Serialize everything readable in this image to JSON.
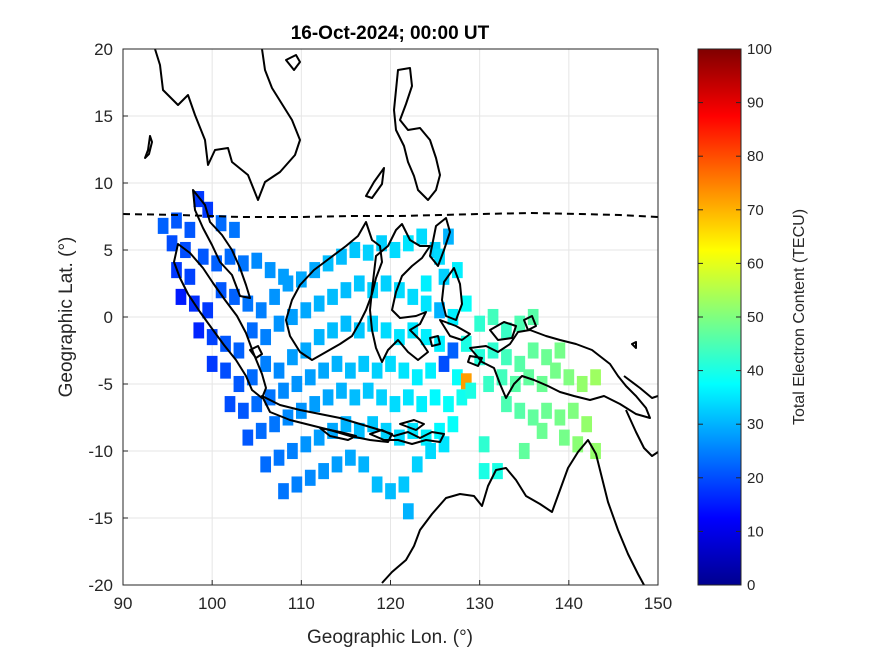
{
  "chart_data": {
    "type": "heatmap",
    "title": "16-Oct-2024; 00:00 UT",
    "xlabel": "Geographic Lon. (°)",
    "ylabel": "Geographic Lat. (°)",
    "xlim": [
      90,
      150
    ],
    "ylim": [
      -20,
      20
    ],
    "xticks": [
      "90",
      "100",
      "110",
      "120",
      "130",
      "140",
      "150"
    ],
    "yticks": [
      "20",
      "15",
      "10",
      "5",
      "0",
      "-5",
      "-10",
      "-15",
      "-20"
    ],
    "grid": true,
    "colorbar": {
      "label": "Total Electron Content (TECU)",
      "range": [
        0,
        100
      ],
      "ticks": [
        "0",
        "10",
        "20",
        "30",
        "40",
        "50",
        "60",
        "70",
        "80",
        "90",
        "100"
      ],
      "colormap": "jet"
    },
    "cell_size_deg": 1.2,
    "cells": [
      [
        94.5,
        6.8,
        22
      ],
      [
        96,
        7.2,
        21
      ],
      [
        97.5,
        6.5,
        21
      ],
      [
        95.5,
        5.5,
        20
      ],
      [
        97,
        5,
        20
      ],
      [
        98.5,
        8.8,
        18
      ],
      [
        99.5,
        8,
        18
      ],
      [
        101,
        7,
        23
      ],
      [
        102.5,
        6.5,
        24
      ],
      [
        96,
        3.5,
        18
      ],
      [
        97.5,
        3,
        19
      ],
      [
        99,
        4.5,
        21
      ],
      [
        100.5,
        4,
        22
      ],
      [
        102,
        4.5,
        23
      ],
      [
        103.5,
        4,
        24
      ],
      [
        105,
        4.2,
        26
      ],
      [
        106.5,
        3.5,
        27
      ],
      [
        108,
        3,
        28
      ],
      [
        96.5,
        1.5,
        15
      ],
      [
        98,
        1,
        17
      ],
      [
        99.5,
        0.5,
        18
      ],
      [
        101,
        2,
        21
      ],
      [
        102.5,
        1.5,
        22
      ],
      [
        104,
        1,
        24
      ],
      [
        105.5,
        0.5,
        25
      ],
      [
        107,
        1.5,
        27
      ],
      [
        108.5,
        2.5,
        28
      ],
      [
        110,
        2.8,
        29
      ],
      [
        111.5,
        3.5,
        29
      ],
      [
        113,
        4,
        31
      ],
      [
        114.5,
        4.5,
        31
      ],
      [
        116,
        5,
        32
      ],
      [
        117.5,
        4.8,
        33
      ],
      [
        119,
        5.5,
        33
      ],
      [
        120.5,
        5,
        34
      ],
      [
        122,
        5.5,
        35
      ],
      [
        123.5,
        6,
        34
      ],
      [
        125,
        5,
        33
      ],
      [
        126.5,
        6,
        30
      ],
      [
        98.5,
        -1,
        16
      ],
      [
        100,
        -1.5,
        19
      ],
      [
        101.5,
        -2,
        21
      ],
      [
        103,
        -2.5,
        22
      ],
      [
        104.5,
        -1,
        23
      ],
      [
        106,
        -1.5,
        25
      ],
      [
        107.5,
        -0.5,
        27
      ],
      [
        109,
        0,
        28
      ],
      [
        110.5,
        0.5,
        29
      ],
      [
        112,
        1,
        30
      ],
      [
        113.5,
        1.5,
        31
      ],
      [
        115,
        2,
        31
      ],
      [
        116.5,
        2.5,
        32
      ],
      [
        118,
        2,
        33
      ],
      [
        119.5,
        2.5,
        33
      ],
      [
        121,
        2,
        34
      ],
      [
        122.5,
        1.5,
        34
      ],
      [
        124,
        1,
        35
      ],
      [
        125.5,
        0.5,
        30
      ],
      [
        127,
        0,
        36
      ],
      [
        128.5,
        1,
        38
      ],
      [
        100,
        -3.5,
        18
      ],
      [
        101.5,
        -4,
        20
      ],
      [
        103,
        -5,
        21
      ],
      [
        104.5,
        -4.5,
        23
      ],
      [
        106,
        -3.5,
        25
      ],
      [
        107.5,
        -4,
        26
      ],
      [
        109,
        -3,
        28
      ],
      [
        110.5,
        -2.5,
        29
      ],
      [
        112,
        -1.5,
        30
      ],
      [
        113.5,
        -1,
        31
      ],
      [
        115,
        -0.5,
        31
      ],
      [
        116.5,
        -1,
        32
      ],
      [
        118,
        -0.5,
        33
      ],
      [
        119.5,
        -1,
        34
      ],
      [
        121,
        -1.5,
        35
      ],
      [
        122.5,
        -1,
        35
      ],
      [
        124,
        -1.5,
        36
      ],
      [
        125.5,
        -2,
        36
      ],
      [
        127,
        -2.5,
        22
      ],
      [
        128.5,
        -2,
        40
      ],
      [
        130,
        -0.5,
        42
      ],
      [
        131.5,
        0,
        44
      ],
      [
        133,
        -1,
        43
      ],
      [
        134.5,
        -0.5,
        45
      ],
      [
        136,
        0,
        46
      ],
      [
        102,
        -6.5,
        20
      ],
      [
        103.5,
        -7,
        21
      ],
      [
        105,
        -6.5,
        23
      ],
      [
        106.5,
        -6,
        24
      ],
      [
        108,
        -5.5,
        26
      ],
      [
        109.5,
        -5,
        27
      ],
      [
        111,
        -4.5,
        28
      ],
      [
        112.5,
        -4,
        29
      ],
      [
        114,
        -3.5,
        30
      ],
      [
        115.5,
        -4,
        31
      ],
      [
        117,
        -3.5,
        32
      ],
      [
        118.5,
        -4,
        33
      ],
      [
        120,
        -3.5,
        34
      ],
      [
        121.5,
        -4,
        35
      ],
      [
        123,
        -4.5,
        36
      ],
      [
        124.5,
        -4,
        36
      ],
      [
        126,
        -3.5,
        20
      ],
      [
        127.5,
        -4.5,
        38
      ],
      [
        128.5,
        -4.8,
        72
      ],
      [
        130,
        -3,
        41
      ],
      [
        131.5,
        -2.5,
        42
      ],
      [
        133,
        -3,
        44
      ],
      [
        134.5,
        -3.5,
        46
      ],
      [
        136,
        -2.5,
        47
      ],
      [
        137.5,
        -3,
        48
      ],
      [
        139,
        -2.5,
        49
      ],
      [
        104,
        -9,
        21
      ],
      [
        105.5,
        -8.5,
        23
      ],
      [
        107,
        -8,
        24
      ],
      [
        108.5,
        -7.5,
        26
      ],
      [
        110,
        -7,
        27
      ],
      [
        111.5,
        -6.5,
        28
      ],
      [
        113,
        -6,
        29
      ],
      [
        114.5,
        -5.5,
        30
      ],
      [
        116,
        -6,
        31
      ],
      [
        117.5,
        -5.5,
        32
      ],
      [
        119,
        -6,
        33
      ],
      [
        120.5,
        -6.5,
        34
      ],
      [
        122,
        -6,
        35
      ],
      [
        123.5,
        -6.5,
        36
      ],
      [
        125,
        -6,
        37
      ],
      [
        126.5,
        -6.5,
        38
      ],
      [
        128,
        -6,
        39
      ],
      [
        129,
        -5.5,
        40
      ],
      [
        131,
        -5,
        43
      ],
      [
        132.5,
        -4.5,
        44
      ],
      [
        134,
        -5,
        46
      ],
      [
        135.5,
        -4.5,
        47
      ],
      [
        137,
        -5,
        48
      ],
      [
        138.5,
        -4,
        49
      ],
      [
        140,
        -4.5,
        50
      ],
      [
        141.5,
        -5,
        52
      ],
      [
        143,
        -4.5,
        53
      ],
      [
        106,
        -11,
        23
      ],
      [
        107.5,
        -10.5,
        24
      ],
      [
        109,
        -10,
        25
      ],
      [
        110.5,
        -9.5,
        27
      ],
      [
        112,
        -9,
        28
      ],
      [
        113.5,
        -8.5,
        29
      ],
      [
        115,
        -8,
        30
      ],
      [
        116.5,
        -8.5,
        31
      ],
      [
        118,
        -8,
        32
      ],
      [
        119.5,
        -8.5,
        33
      ],
      [
        121,
        -9,
        34
      ],
      [
        122.5,
        -8.5,
        35
      ],
      [
        124,
        -9,
        36
      ],
      [
        125.5,
        -8.5,
        37
      ],
      [
        127,
        -8,
        38
      ],
      [
        133,
        -6.5,
        45
      ],
      [
        134.5,
        -7,
        46
      ],
      [
        136,
        -7.5,
        47
      ],
      [
        137.5,
        -7,
        48
      ],
      [
        139,
        -7.5,
        49
      ],
      [
        140.5,
        -7,
        50
      ],
      [
        142,
        -8,
        52
      ],
      [
        108,
        -13,
        24
      ],
      [
        109.5,
        -12.5,
        25
      ],
      [
        111,
        -12,
        26
      ],
      [
        112.5,
        -11.5,
        27
      ],
      [
        114,
        -11,
        28
      ],
      [
        115.5,
        -10.5,
        29
      ],
      [
        117,
        -11,
        30
      ],
      [
        118.5,
        -12.5,
        31
      ],
      [
        120,
        -13,
        31
      ],
      [
        121.5,
        -12.5,
        32
      ],
      [
        123,
        -11,
        33
      ],
      [
        124.5,
        -10,
        34
      ],
      [
        126,
        -9.5,
        35
      ],
      [
        130.5,
        -9.5,
        42
      ],
      [
        132,
        -11.5,
        40
      ],
      [
        135,
        -10,
        47
      ],
      [
        137,
        -8.5,
        48
      ],
      [
        139.5,
        -9,
        49
      ],
      [
        141,
        -9.5,
        51
      ],
      [
        143,
        -10,
        52
      ],
      [
        122,
        -14.5,
        30
      ],
      [
        130.5,
        -11.5,
        40
      ],
      [
        124,
        2.5,
        36
      ],
      [
        126,
        3,
        33
      ],
      [
        125.5,
        4.5,
        34
      ],
      [
        127.5,
        3.5,
        36
      ]
    ]
  }
}
